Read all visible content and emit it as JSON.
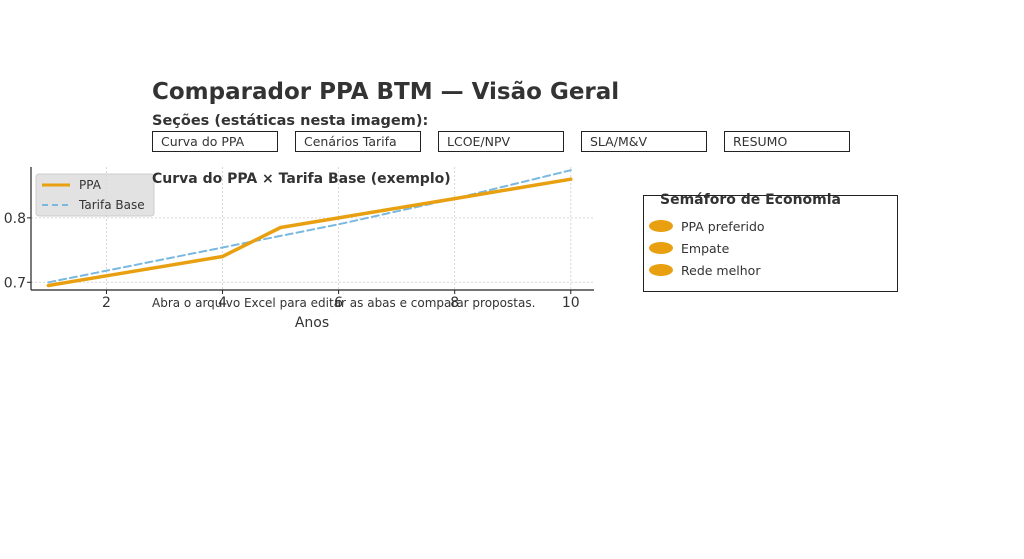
{
  "page": {
    "title": "Comparador PPA BTM — Visão Geral",
    "sections_heading": "Seções (estáticas nesta imagem):",
    "tabs": [
      {
        "label": "Curva do PPA"
      },
      {
        "label": "Cenários Tarifa"
      },
      {
        "label": "LCOE/NPV"
      },
      {
        "label": "SLA/M&V"
      },
      {
        "label": "RESUMO"
      }
    ],
    "footnote": "Abra o arquivo Excel para editar as abas e comparar propostas."
  },
  "semaforo": {
    "title": "Semáforo de Economia",
    "items": [
      {
        "label": "PPA preferido",
        "color": "#e8a010"
      },
      {
        "label": "Empate",
        "color": "#e8a010"
      },
      {
        "label": "Rede melhor",
        "color": "#e8a010"
      }
    ]
  },
  "chart_data": {
    "type": "line",
    "title": "Curva do PPA × Tarifa Base (exemplo)",
    "xlabel": "Anos",
    "ylabel": "",
    "xlim": [
      0.7,
      10.4
    ],
    "ylim": [
      0.688,
      0.879
    ],
    "xticks": [
      2,
      4,
      6,
      8,
      10
    ],
    "yticks": [
      0.7,
      0.8
    ],
    "grid": true,
    "legend_position": "top-left",
    "series": [
      {
        "name": "PPA",
        "color": "#e8a010",
        "style": "solid",
        "x": [
          1,
          2,
          3,
          4,
          5,
          6,
          7,
          8,
          9,
          10
        ],
        "y": [
          0.695,
          0.71,
          0.725,
          0.74,
          0.785,
          0.8,
          0.815,
          0.83,
          0.845,
          0.86
        ]
      },
      {
        "name": "Tarifa Base",
        "color": "#7ab8e0",
        "style": "dashed",
        "x": [
          1,
          2,
          3,
          4,
          5,
          6,
          7,
          8,
          9,
          10
        ],
        "y": [
          0.7,
          0.718,
          0.736,
          0.754,
          0.772,
          0.79,
          0.81,
          0.83,
          0.852,
          0.874
        ]
      }
    ]
  }
}
